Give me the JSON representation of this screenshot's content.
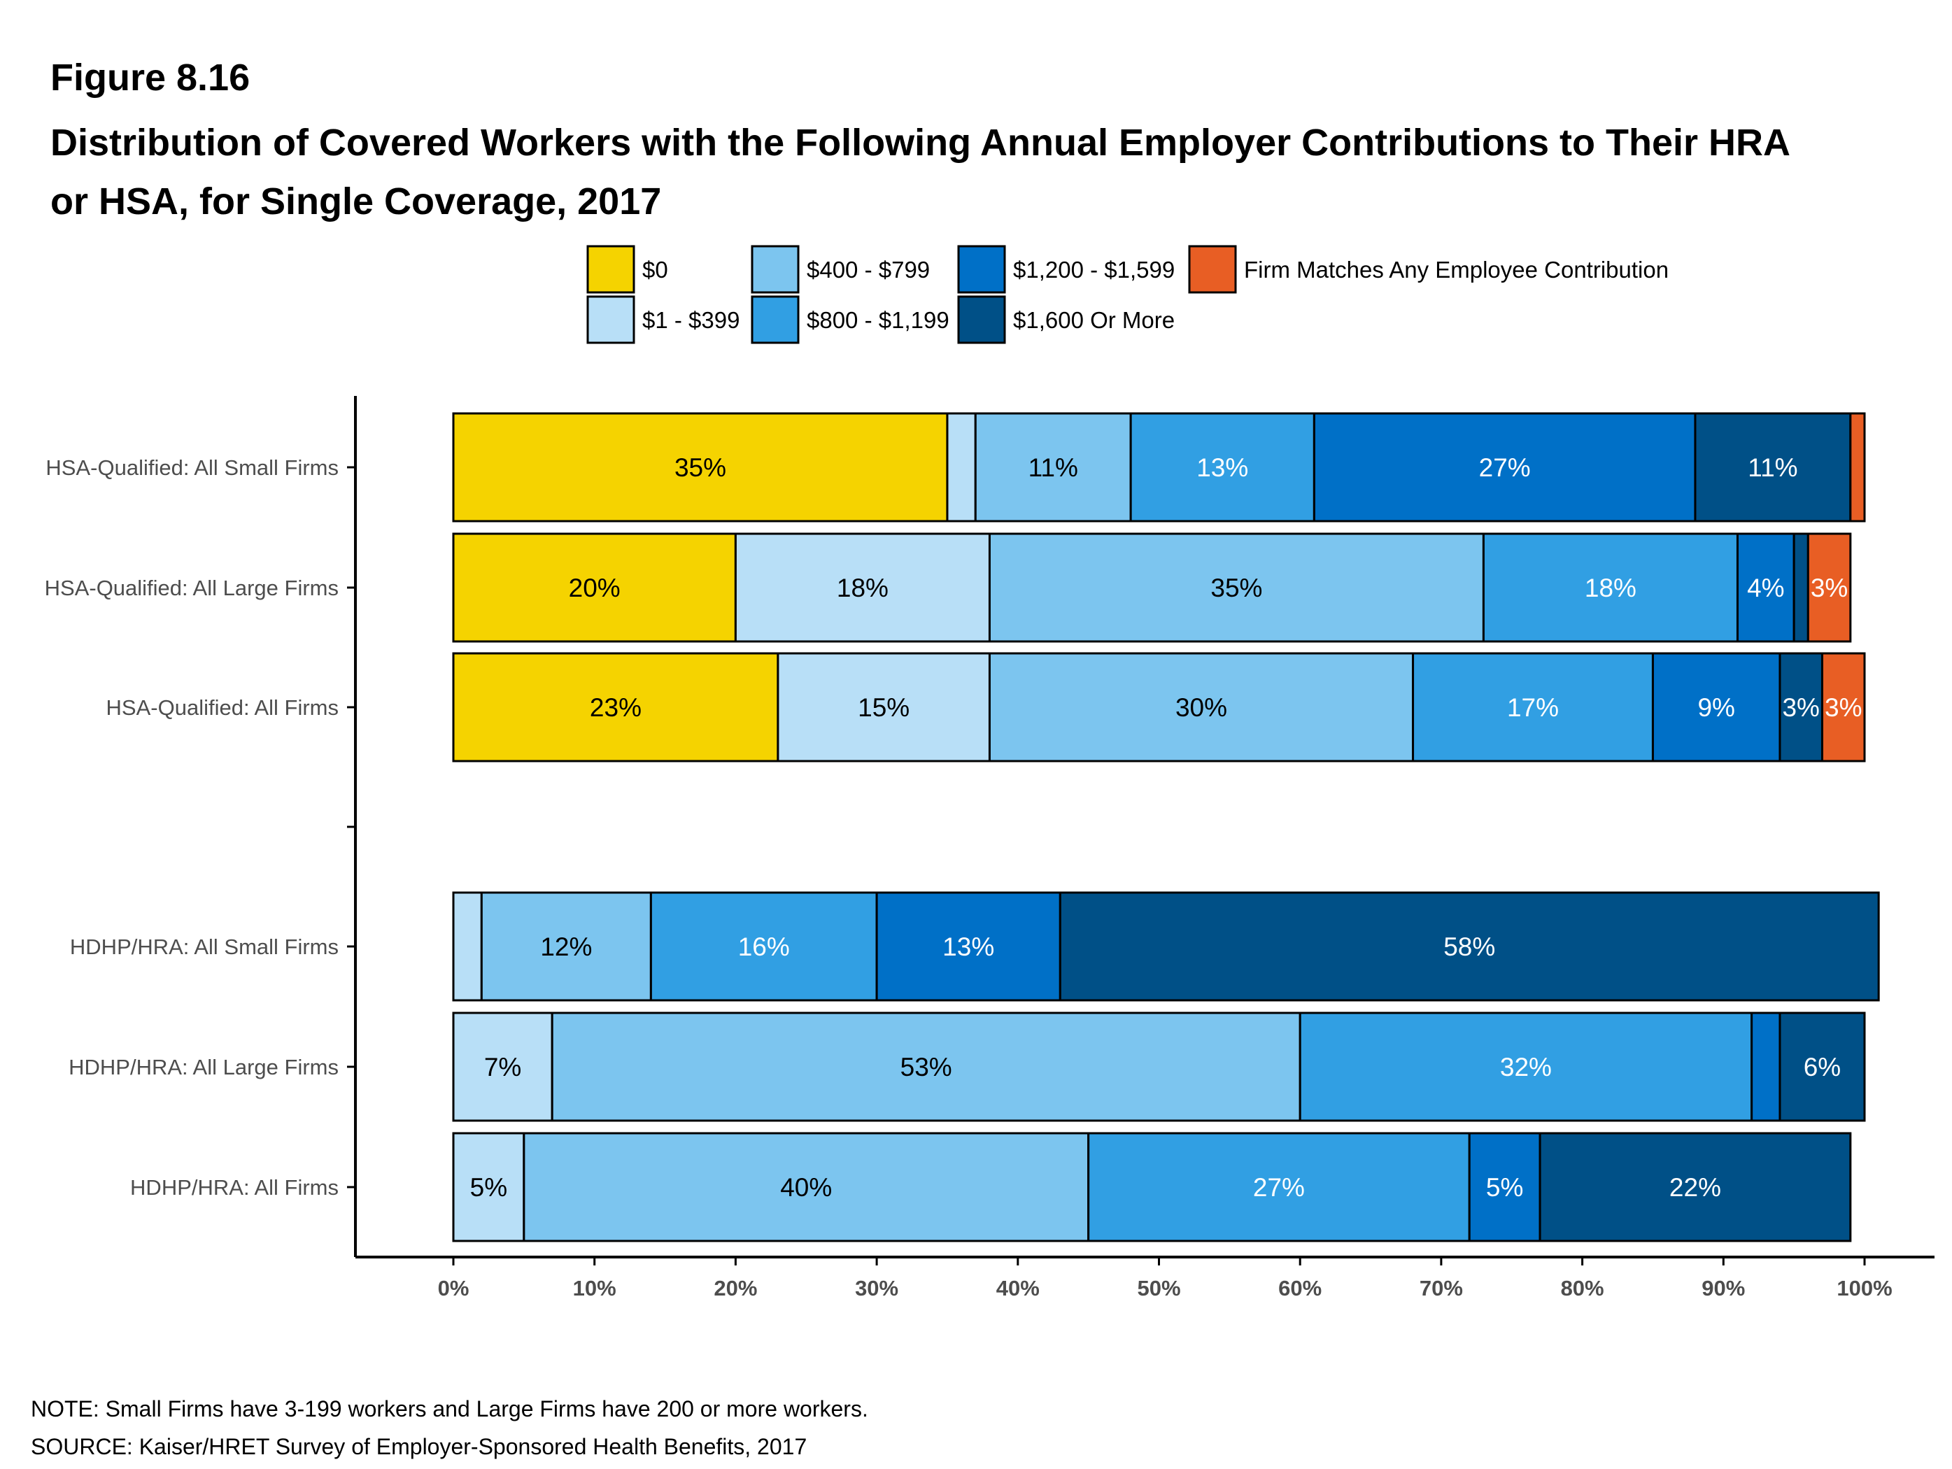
{
  "figure_label": "Figure 8.16",
  "title": "Distribution of Covered Workers with the Following Annual Employer Contributions to Their HRA or HSA, for Single Coverage, 2017",
  "note": "NOTE: Small Firms have 3-199 workers and Large Firms have 200 or more workers.",
  "source": "SOURCE: Kaiser/HRET Survey of Employer-Sponsored Health Benefits, 2017",
  "colors": {
    "$0": "#F5D300",
    "$1 - $399": "#B8DFF7",
    "$400 - $799": "#7CC5EF",
    "$800 - $1,199": "#319FE3",
    "$1,200 - $1,599": "#0070C7",
    "$1,600 Or More": "#005087",
    "Firm Matches Any Employee Contribution": "#E85E24"
  },
  "chart_data": {
    "type": "bar",
    "orientation": "horizontal",
    "stacked": true,
    "categories": [
      "HSA-Qualified: All Small Firms",
      "HSA-Qualified: All Large Firms",
      "HSA-Qualified: All Firms",
      "HDHP/HRA: All Small Firms",
      "HDHP/HRA: All Large Firms",
      "HDHP/HRA: All Firms"
    ],
    "series": [
      {
        "name": "$0",
        "values": [
          35,
          20,
          23,
          0,
          0,
          0
        ],
        "labels": [
          "35%",
          "20%",
          "23%",
          "",
          "",
          ""
        ]
      },
      {
        "name": "$1 - $399",
        "values": [
          2,
          18,
          15,
          2,
          7,
          5
        ],
        "labels": [
          "",
          "18%",
          "15%",
          "",
          "7%",
          "5%"
        ]
      },
      {
        "name": "$400 - $799",
        "values": [
          11,
          35,
          30,
          12,
          53,
          40
        ],
        "labels": [
          "11%",
          "35%",
          "30%",
          "12%",
          "53%",
          "40%"
        ]
      },
      {
        "name": "$800 - $1,199",
        "values": [
          13,
          18,
          17,
          16,
          32,
          27
        ],
        "labels": [
          "13%",
          "18%",
          "17%",
          "16%",
          "32%",
          "27%"
        ]
      },
      {
        "name": "$1,200 - $1,599",
        "values": [
          27,
          4,
          9,
          13,
          2,
          5
        ],
        "labels": [
          "27%",
          "4%",
          "9%",
          "13%",
          "",
          "5%"
        ]
      },
      {
        "name": "$1,600 Or More",
        "values": [
          11,
          1,
          3,
          58,
          6,
          22
        ],
        "labels": [
          "11%",
          "",
          "3%",
          "58%",
          "6%",
          "22%"
        ]
      },
      {
        "name": "Firm Matches Any Employee Contribution",
        "values": [
          1,
          3,
          3,
          0,
          0,
          0
        ],
        "labels": [
          "",
          "3%",
          "3%",
          "",
          "",
          ""
        ]
      }
    ],
    "xlim": [
      0,
      100
    ],
    "x_ticks": [
      "0%",
      "10%",
      "20%",
      "30%",
      "40%",
      "50%",
      "60%",
      "70%",
      "80%",
      "90%",
      "100%"
    ],
    "legend": "top",
    "grid": false
  }
}
